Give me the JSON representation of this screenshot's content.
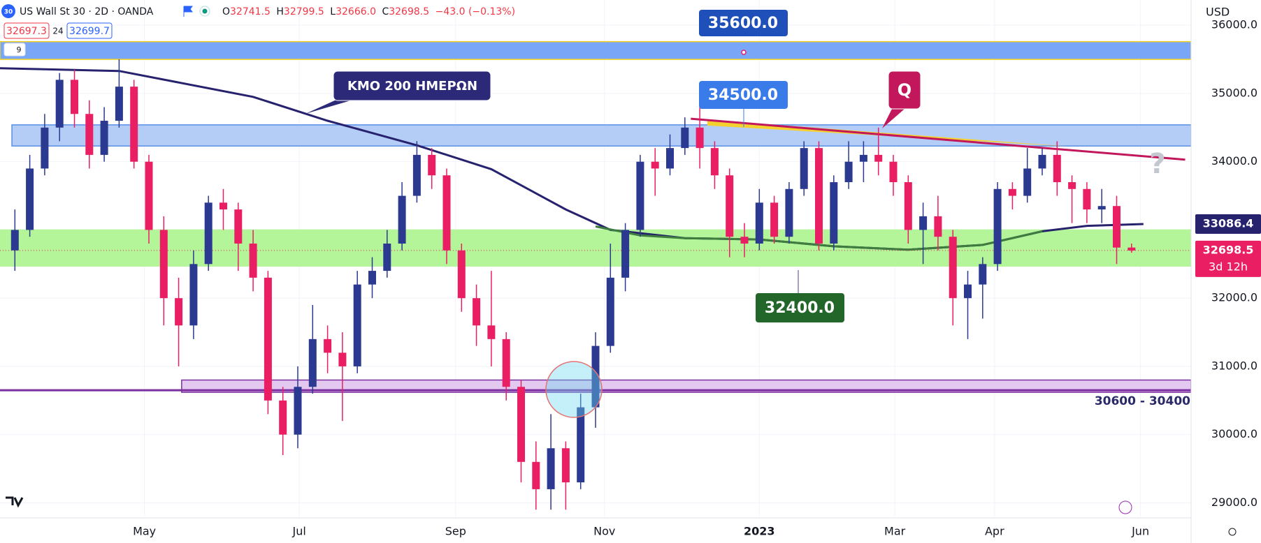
{
  "header": {
    "badge": "30",
    "symbol": "US Wall St 30 · 2D · OANDA",
    "ohlc": [
      {
        "label": "O",
        "value": "32741.5"
      },
      {
        "label": "H",
        "value": "32799.5"
      },
      {
        "label": "L",
        "value": "32666.0"
      },
      {
        "label": "C",
        "value": "32698.5"
      }
    ],
    "change": "−43.0 (−0.13%)",
    "bid": "32697.3",
    "spread": "24",
    "ask": "32699.7",
    "indicators": "9"
  },
  "chart_data": {
    "type": "candlestick",
    "currency": "USD",
    "up_color": "#2b3990",
    "down_color": "#e91e63",
    "grid": true,
    "candles": [
      [
        32700,
        33300,
        32400,
        33000
      ],
      [
        33000,
        34100,
        32900,
        33900
      ],
      [
        33900,
        34700,
        33800,
        34500
      ],
      [
        34500,
        35300,
        34300,
        35200
      ],
      [
        35200,
        35350,
        34500,
        34700
      ],
      [
        34700,
        34900,
        33900,
        34100
      ],
      [
        34100,
        34800,
        34000,
        34600
      ],
      [
        34600,
        35500,
        34500,
        35100
      ],
      [
        35100,
        35200,
        33900,
        34000
      ],
      [
        34000,
        34100,
        32800,
        33000
      ],
      [
        33000,
        33200,
        31600,
        32000
      ],
      [
        32000,
        32300,
        31000,
        31600
      ],
      [
        31600,
        32700,
        31400,
        32500
      ],
      [
        32500,
        33500,
        32400,
        33400
      ],
      [
        33400,
        33600,
        33000,
        33300
      ],
      [
        33300,
        33400,
        32400,
        32800
      ],
      [
        32800,
        33000,
        32100,
        32300
      ],
      [
        32300,
        32400,
        30300,
        30500
      ],
      [
        30500,
        30700,
        29700,
        30000
      ],
      [
        30000,
        31000,
        29800,
        30700
      ],
      [
        30700,
        31900,
        30600,
        31400
      ],
      [
        31400,
        31600,
        30900,
        31200
      ],
      [
        31200,
        31500,
        30200,
        31000
      ],
      [
        31000,
        32400,
        30900,
        32200
      ],
      [
        32200,
        32600,
        32000,
        32400
      ],
      [
        32400,
        33000,
        32300,
        32800
      ],
      [
        32800,
        33700,
        32700,
        33500
      ],
      [
        33500,
        34300,
        33400,
        34100
      ],
      [
        34100,
        34200,
        33600,
        33800
      ],
      [
        33800,
        33900,
        32500,
        32700
      ],
      [
        32700,
        32800,
        31800,
        32000
      ],
      [
        32000,
        32200,
        31300,
        31600
      ],
      [
        31600,
        32400,
        31000,
        31400
      ],
      [
        31400,
        31500,
        30500,
        30700
      ],
      [
        30700,
        30800,
        29300,
        29600
      ],
      [
        29600,
        29900,
        28900,
        29200
      ],
      [
        29200,
        30300,
        28900,
        29800
      ],
      [
        29800,
        29900,
        28900,
        29300
      ],
      [
        29300,
        30600,
        29200,
        30400
      ],
      [
        30400,
        31500,
        30100,
        31300
      ],
      [
        31300,
        32800,
        31200,
        32300
      ],
      [
        32300,
        33100,
        32100,
        33000
      ],
      [
        33000,
        34100,
        32900,
        34000
      ],
      [
        34000,
        34200,
        33500,
        33900
      ],
      [
        33900,
        34400,
        33800,
        34200
      ],
      [
        34200,
        34650,
        34100,
        34500
      ],
      [
        34500,
        34800,
        33900,
        34200
      ],
      [
        34200,
        34300,
        33600,
        33800
      ],
      [
        33800,
        33900,
        32600,
        32900
      ],
      [
        32900,
        33100,
        32600,
        32800
      ],
      [
        32800,
        33600,
        32700,
        33400
      ],
      [
        33400,
        33500,
        32800,
        32900
      ],
      [
        32900,
        33700,
        32800,
        33600
      ],
      [
        33600,
        34300,
        33500,
        34200
      ],
      [
        34200,
        34300,
        32700,
        32800
      ],
      [
        32800,
        33800,
        32700,
        33700
      ],
      [
        33700,
        34300,
        33600,
        34000
      ],
      [
        34000,
        34300,
        33700,
        34100
      ],
      [
        34100,
        34500,
        33800,
        34000
      ],
      [
        34000,
        34100,
        33500,
        33700
      ],
      [
        33700,
        33800,
        32800,
        33000
      ],
      [
        33000,
        33400,
        32500,
        33200
      ],
      [
        33200,
        33500,
        32700,
        32900
      ],
      [
        32900,
        33000,
        31600,
        32000
      ],
      [
        32000,
        32400,
        31400,
        32200
      ],
      [
        32200,
        32600,
        31700,
        32500
      ],
      [
        32500,
        33700,
        32400,
        33600
      ],
      [
        33600,
        33700,
        33300,
        33500
      ],
      [
        33500,
        34200,
        33400,
        33900
      ],
      [
        33900,
        34200,
        33800,
        34100
      ],
      [
        34100,
        34300,
        33500,
        33700
      ],
      [
        33700,
        33800,
        33100,
        33600
      ],
      [
        33600,
        33700,
        33100,
        33300
      ],
      [
        33300,
        33600,
        33100,
        33350
      ],
      [
        33350,
        33500,
        32500,
        32741.5
      ],
      [
        32741.5,
        32799.5,
        32666.0,
        32698.5
      ]
    ],
    "xlim": [
      -1,
      79
    ],
    "ylim": [
      28800,
      36370
    ],
    "xticks": [
      {
        "value": 8.7,
        "label": "May"
      },
      {
        "value": 19.1,
        "label": "Jul"
      },
      {
        "value": 29.6,
        "label": "Sep"
      },
      {
        "value": 39.6,
        "label": "Nov"
      },
      {
        "value": 50.0,
        "label": "2023",
        "emphasis": true
      },
      {
        "value": 59.1,
        "label": "Mar"
      },
      {
        "value": 65.8,
        "label": "Apr"
      },
      {
        "value": 75.6,
        "label": "Jun"
      }
    ],
    "yticks": [
      {
        "value": 29000,
        "label": "29000.0"
      },
      {
        "value": 30000,
        "label": "30000.0"
      },
      {
        "value": 31000,
        "label": "31000.0"
      },
      {
        "value": 32000,
        "label": "32000.0"
      },
      {
        "value": 33000,
        "label": "33000.0"
      },
      {
        "value": 34000,
        "label": "34000.0"
      },
      {
        "value": 35000,
        "label": "35000.0"
      },
      {
        "value": 36000,
        "label": "36000.0"
      }
    ],
    "zones": [
      {
        "range": [
          35500,
          35760
        ],
        "from": -1,
        "color": "#7aa6f7",
        "border": "#f2d21b"
      },
      {
        "range": [
          34230,
          34540
        ],
        "from": -0.2,
        "color": "#b3cdf7",
        "border": "#5a8fe6"
      },
      {
        "range": [
          32470,
          33000
        ],
        "from": -1,
        "color": "#b4f59a",
        "border": "#b4f59a"
      },
      {
        "range": [
          30620,
          30800
        ],
        "from": 11.2,
        "color": "#e3c8ef",
        "border": "#7b2fa0"
      }
    ],
    "support_line": {
      "value": 30650,
      "color": "#7b2fa0"
    },
    "ma_lines": [
      {
        "color": "#27226e",
        "x": [
          -1,
          7,
          16,
          21,
          27,
          32,
          37,
          40,
          45,
          50,
          55,
          60,
          65,
          69,
          72,
          75.8
        ],
        "values": [
          35370,
          35330,
          34950,
          34600,
          34240,
          33890,
          33300,
          33000,
          32880,
          32860,
          32760,
          32710,
          32780,
          32980,
          33060,
          33086.4
        ]
      },
      {
        "color": "#3e7d3e",
        "x": [
          39,
          42,
          45,
          50,
          55,
          60,
          65,
          69
        ],
        "values": [
          33050,
          32920,
          32880,
          32860,
          32760,
          32710,
          32780,
          32980
        ]
      }
    ],
    "q_line": {
      "color": "#c2185b",
      "x": [
        45.4,
        78.6
      ],
      "values": [
        34630,
        34030
      ]
    },
    "q_wedge": {
      "color": "#f5d130",
      "x": [
        46.5,
        70.7,
        46.5
      ],
      "values": [
        34615,
        34225,
        34530
      ]
    },
    "annotations": {
      "level_top": "35600.0",
      "level_mid": "34500.0",
      "level_low": "32400.0",
      "ma_label": "KMO 200 ΗΜΕΡΩΝ",
      "pattern": "Q",
      "question": "?",
      "support": "30600 - 30400"
    },
    "price_tags": [
      {
        "value": 33086.4,
        "label": "33086.4",
        "color": "#27226e"
      },
      {
        "value": 32698.5,
        "label": "32698.5",
        "sub": "3d 12h",
        "color": "#e91e63"
      }
    ]
  }
}
